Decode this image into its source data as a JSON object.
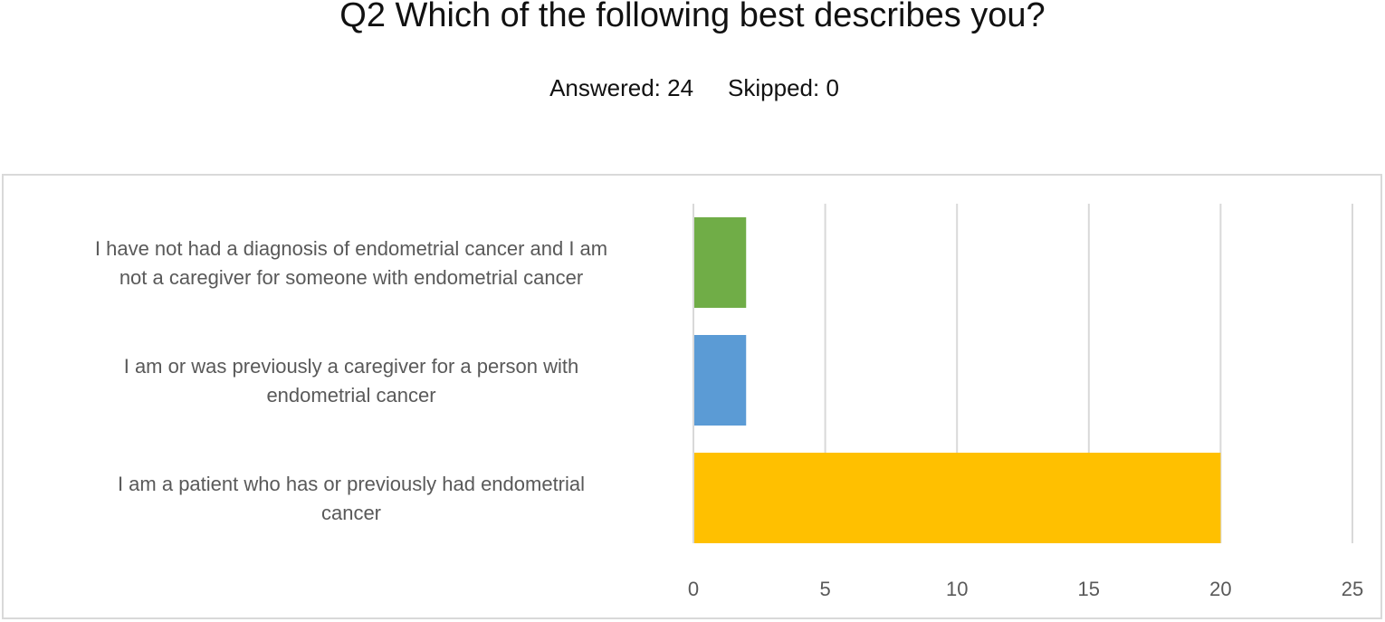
{
  "header": {
    "title": "Q2 Which of the following best describes you?",
    "answered": "Answered: 24",
    "skipped": "Skipped: 0"
  },
  "chart_data": {
    "type": "bar",
    "orientation": "horizontal",
    "categories": [
      [
        "I have not had a diagnosis of endometrial cancer and I am",
        "not a caregiver for someone with endometrial cancer"
      ],
      [
        "I am or was previously a caregiver for a person with",
        "endometrial cancer"
      ],
      [
        "I am a patient who has or previously had endometrial",
        "cancer"
      ]
    ],
    "values": [
      2,
      2,
      20
    ],
    "colors": [
      "#70ad47",
      "#5b9bd5",
      "#ffc000"
    ],
    "xlim": [
      0,
      25
    ],
    "xticks": [
      0,
      5,
      10,
      15,
      20,
      25
    ],
    "grid": true,
    "legend": false
  }
}
